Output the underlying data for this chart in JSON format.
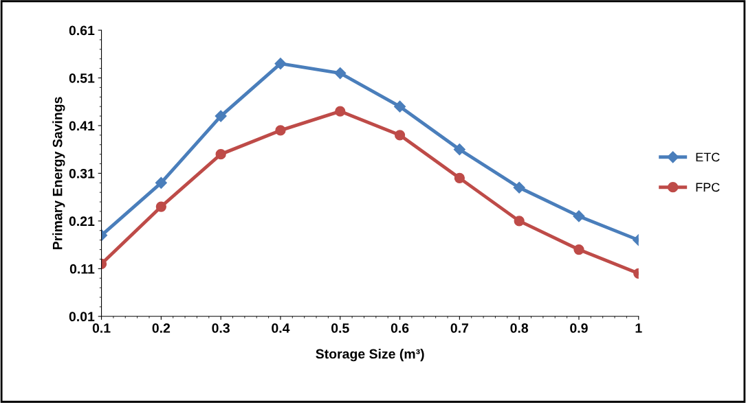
{
  "chart_data": {
    "type": "line",
    "xlabel": "Storage Size (m³)",
    "ylabel": "Primary Energy Savings",
    "x": [
      0.1,
      0.2,
      0.3,
      0.4,
      0.5,
      0.6,
      0.7,
      0.8,
      0.9,
      1
    ],
    "xlim": [
      0.1,
      1
    ],
    "xticks": [
      0.1,
      0.2,
      0.3,
      0.4,
      0.5,
      0.6,
      0.7,
      0.8,
      0.9,
      1
    ],
    "ylim": [
      0.01,
      0.61
    ],
    "yticks": [
      0.01,
      0.11,
      0.21,
      0.31,
      0.41,
      0.51,
      0.61
    ],
    "series": [
      {
        "name": "ETC",
        "color": "#4a7ebb",
        "marker": "diamond",
        "values": [
          0.18,
          0.29,
          0.43,
          0.54,
          0.52,
          0.45,
          0.36,
          0.28,
          0.22,
          0.17
        ]
      },
      {
        "name": "FPC",
        "color": "#be4b48",
        "marker": "circle",
        "values": [
          0.12,
          0.24,
          0.35,
          0.4,
          0.44,
          0.39,
          0.3,
          0.21,
          0.15,
          0.1
        ]
      }
    ],
    "legend": "right",
    "grid": false,
    "line_style": "solid"
  }
}
